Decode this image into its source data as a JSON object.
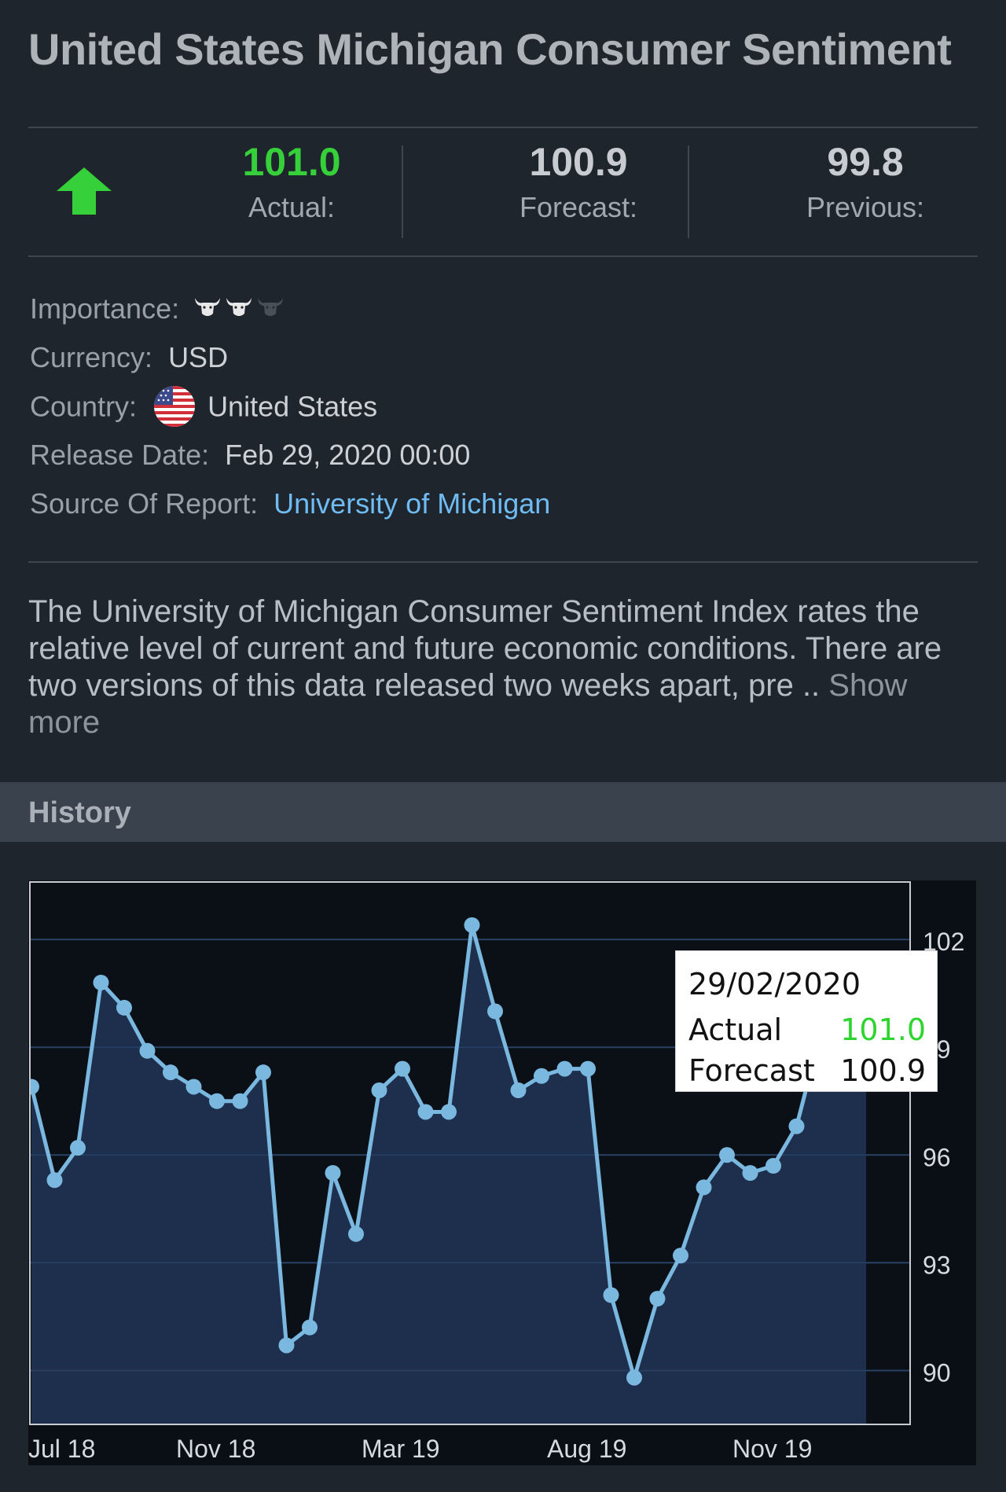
{
  "header": {
    "title": "United States Michigan Consumer Sentiment"
  },
  "stats": {
    "trend_icon": "up-arrow-icon",
    "actual": {
      "value": "101.0",
      "label": "Actual:"
    },
    "forecast": {
      "value": "100.9",
      "label": "Forecast:"
    },
    "previous": {
      "value": "99.8",
      "label": "Previous:"
    }
  },
  "details": {
    "importance_label": "Importance:",
    "importance_level": 2,
    "importance_max": 3,
    "currency_label": "Currency:",
    "currency": "USD",
    "country_label": "Country:",
    "country": "United States",
    "release_date_label": "Release Date:",
    "release_date": "Feb 29, 2020 00:00",
    "source_label": "Source Of Report:",
    "source": "University of Michigan"
  },
  "description": {
    "text": "The University of Michigan Consumer Sentiment Index rates the relative level of current and future economic conditions. There are two versions of this data released two weeks apart, pre .. ",
    "show_more": "Show more"
  },
  "history": {
    "label": "History"
  },
  "tooltip": {
    "date": "29/02/2020",
    "actual_label": "Actual",
    "actual_value": "101.0",
    "forecast_label": "Forecast",
    "forecast_value": "100.9"
  },
  "colors": {
    "accent_green": "#36d13a",
    "link_blue": "#6fbcf2",
    "line": "#7ab8e0",
    "area": "#1f3150",
    "plot_bg": "#0b1017"
  },
  "chart_data": {
    "type": "area",
    "x_tick_labels": [
      "Jul 18",
      "Nov 18",
      "Mar 19",
      "Aug 19",
      "Nov 19"
    ],
    "x_tick_index": [
      0,
      8,
      16,
      24,
      32
    ],
    "y_ticks": [
      90,
      93,
      96,
      99,
      102
    ],
    "ylim": [
      88.5,
      103.6
    ],
    "grid": true,
    "series": [
      {
        "values": [
          97.9,
          95.3,
          96.2,
          100.8,
          100.1,
          98.9,
          98.3,
          97.9,
          97.5,
          97.5,
          98.3,
          90.7,
          91.2,
          95.5,
          93.8,
          97.8,
          98.4,
          97.2,
          97.2,
          102.4,
          100.0,
          97.8,
          98.2,
          98.4,
          98.4,
          92.1,
          89.8,
          92.0,
          93.2,
          95.1,
          96.0,
          95.5,
          95.7,
          96.8,
          99.3,
          99.8,
          101.0
        ],
        "point_count": 37
      }
    ]
  }
}
